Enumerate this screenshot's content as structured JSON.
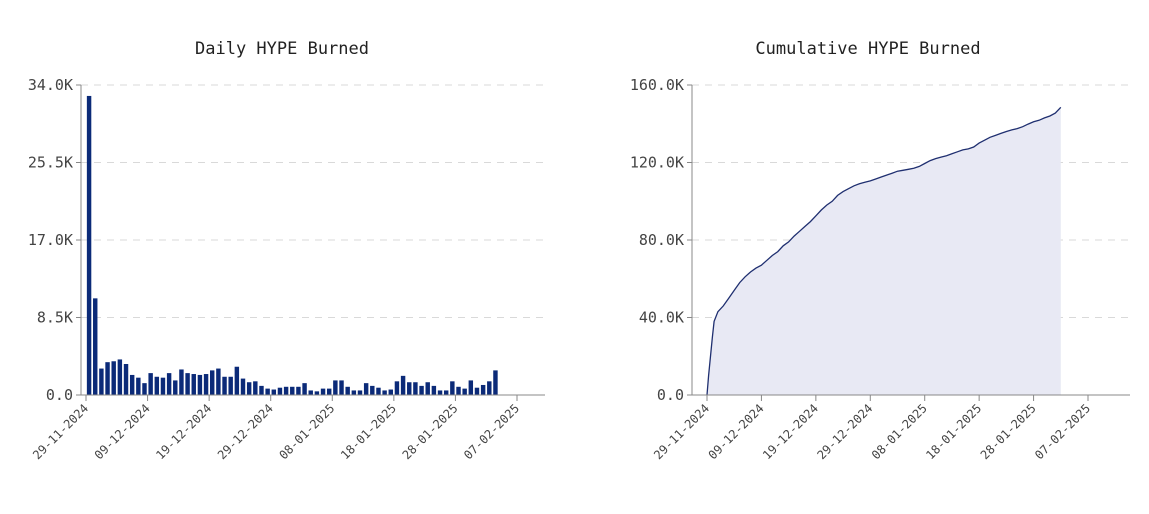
{
  "chart_data": [
    {
      "type": "bar",
      "title": "Daily HYPE Burned",
      "xlabel": "",
      "ylabel": "",
      "ylim": [
        0,
        34000
      ],
      "yticks": [
        0,
        8500,
        17000,
        25500,
        34000
      ],
      "ytick_labels": [
        "0.0",
        "8.5K",
        "17.0K",
        "25.5K",
        "34.0K"
      ],
      "xticks": [
        "2024-11-29",
        "2024-12-09",
        "2024-12-19",
        "2024-12-29",
        "2025-01-08",
        "2025-01-18",
        "2025-01-28",
        "2025-02-07"
      ],
      "xtick_labels": [
        "29-11-2024",
        "09-12-2024",
        "19-12-2024",
        "29-12-2024",
        "08-01-2025",
        "18-01-2025",
        "28-01-2025",
        "07-02-2025"
      ],
      "xlim": [
        "2024-11-29",
        "2025-02-07"
      ],
      "grid": true,
      "color": "#0b2a78",
      "start_date": "2024-11-29",
      "values": [
        32800,
        10600,
        2900,
        3600,
        3700,
        3900,
        3400,
        2200,
        1900,
        1300,
        2400,
        2000,
        1900,
        2400,
        1600,
        2800,
        2400,
        2300,
        2200,
        2300,
        2700,
        2900,
        2000,
        2000,
        3100,
        1800,
        1400,
        1500,
        1000,
        700,
        600,
        800,
        900,
        900,
        900,
        1300,
        500,
        400,
        700,
        700,
        1600,
        1600,
        900,
        500,
        500,
        1300,
        1000,
        800,
        500,
        600,
        1500,
        2100,
        1400,
        1400,
        1000,
        1400,
        1000,
        500,
        500,
        1500,
        900,
        700,
        1600,
        800,
        1100,
        1500,
        2700
      ]
    },
    {
      "type": "area",
      "title": "Cumulative HYPE Burned",
      "xlabel": "",
      "ylabel": "",
      "ylim": [
        0,
        160000
      ],
      "yticks": [
        0,
        40000,
        80000,
        120000,
        160000
      ],
      "ytick_labels": [
        "0.0",
        "40.0K",
        "80.0K",
        "120.0K",
        "160.0K"
      ],
      "xticks": [
        "2024-11-29",
        "2024-12-09",
        "2024-12-19",
        "2024-12-29",
        "2025-01-08",
        "2025-01-18",
        "2025-01-28",
        "2025-02-07"
      ],
      "xtick_labels": [
        "29-11-2024",
        "09-12-2024",
        "19-12-2024",
        "29-12-2024",
        "08-01-2025",
        "18-01-2025",
        "28-01-2025",
        "07-02-2025"
      ],
      "xlim": [
        "2024-11-29",
        "2025-02-07"
      ],
      "grid": true,
      "line_color": "#1f2f70",
      "fill_color": "#e8e9f4",
      "points": [
        [
          "2024-11-29",
          0
        ],
        [
          "2024-11-29",
          10000
        ],
        [
          "2024-11-30",
          30000
        ],
        [
          "2024-11-30",
          38000
        ],
        [
          "2024-12-01",
          43000
        ],
        [
          "2024-12-02",
          46000
        ],
        [
          "2024-12-03",
          50000
        ],
        [
          "2024-12-04",
          54000
        ],
        [
          "2024-12-05",
          58000
        ],
        [
          "2024-12-06",
          61000
        ],
        [
          "2024-12-07",
          63500
        ],
        [
          "2024-12-08",
          65500
        ],
        [
          "2024-12-09",
          67000
        ],
        [
          "2024-12-10",
          69500
        ],
        [
          "2024-12-11",
          72000
        ],
        [
          "2024-12-12",
          74000
        ],
        [
          "2024-12-13",
          77000
        ],
        [
          "2024-12-14",
          79000
        ],
        [
          "2024-12-15",
          82000
        ],
        [
          "2024-12-16",
          84500
        ],
        [
          "2024-12-17",
          87000
        ],
        [
          "2024-12-18",
          89500
        ],
        [
          "2024-12-19",
          92500
        ],
        [
          "2024-12-20",
          95500
        ],
        [
          "2024-12-21",
          98000
        ],
        [
          "2024-12-22",
          100000
        ],
        [
          "2024-12-23",
          103000
        ],
        [
          "2024-12-24",
          105000
        ],
        [
          "2024-12-25",
          106500
        ],
        [
          "2024-12-26",
          108000
        ],
        [
          "2024-12-27",
          109000
        ],
        [
          "2024-12-28",
          109800
        ],
        [
          "2024-12-29",
          110500
        ],
        [
          "2024-12-30",
          111500
        ],
        [
          "2024-12-31",
          112500
        ],
        [
          "2025-01-01",
          113500
        ],
        [
          "2025-01-02",
          114500
        ],
        [
          "2025-01-03",
          115500
        ],
        [
          "2025-01-04",
          116000
        ],
        [
          "2025-01-05",
          116500
        ],
        [
          "2025-01-06",
          117000
        ],
        [
          "2025-01-07",
          118000
        ],
        [
          "2025-01-08",
          119500
        ],
        [
          "2025-01-09",
          121000
        ],
        [
          "2025-01-10",
          122000
        ],
        [
          "2025-01-11",
          122800
        ],
        [
          "2025-01-12",
          123500
        ],
        [
          "2025-01-13",
          124500
        ],
        [
          "2025-01-14",
          125500
        ],
        [
          "2025-01-15",
          126500
        ],
        [
          "2025-01-16",
          127000
        ],
        [
          "2025-01-17",
          128000
        ],
        [
          "2025-01-18",
          130000
        ],
        [
          "2025-01-19",
          131500
        ],
        [
          "2025-01-20",
          133000
        ],
        [
          "2025-01-21",
          134000
        ],
        [
          "2025-01-22",
          135000
        ],
        [
          "2025-01-23",
          136000
        ],
        [
          "2025-01-24",
          136800
        ],
        [
          "2025-01-25",
          137500
        ],
        [
          "2025-01-26",
          138500
        ],
        [
          "2025-01-27",
          139800
        ],
        [
          "2025-01-28",
          141000
        ],
        [
          "2025-01-29",
          141800
        ],
        [
          "2025-01-30",
          143000
        ],
        [
          "2025-01-31",
          144000
        ],
        [
          "2025-02-01",
          145500
        ],
        [
          "2025-02-02",
          148500
        ]
      ]
    }
  ]
}
